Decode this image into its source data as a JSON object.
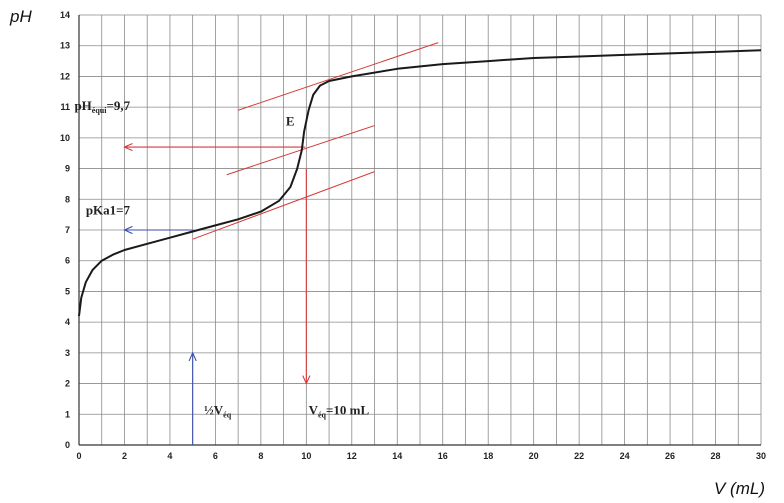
{
  "chart_data": {
    "type": "line",
    "xlabel": "V (mL)",
    "ylabel": "pH",
    "xlim": [
      0,
      30
    ],
    "ylim": [
      0,
      14
    ],
    "x_ticks": [
      0,
      2,
      4,
      6,
      8,
      10,
      12,
      14,
      16,
      18,
      20,
      22,
      24,
      26,
      28,
      30
    ],
    "y_ticks": [
      0,
      1,
      2,
      3,
      4,
      5,
      6,
      7,
      8,
      9,
      10,
      11,
      12,
      13,
      14
    ],
    "grid": true,
    "series": [
      {
        "points": [
          [
            0,
            4.2
          ],
          [
            0.1,
            4.8
          ],
          [
            0.3,
            5.3
          ],
          [
            0.6,
            5.7
          ],
          [
            1,
            6.0
          ],
          [
            1.5,
            6.2
          ],
          [
            2,
            6.35
          ],
          [
            3,
            6.55
          ],
          [
            4,
            6.75
          ],
          [
            5,
            6.95
          ],
          [
            6,
            7.15
          ],
          [
            7,
            7.35
          ],
          [
            8,
            7.6
          ],
          [
            8.8,
            7.95
          ],
          [
            9.3,
            8.4
          ],
          [
            9.6,
            9.0
          ],
          [
            9.8,
            9.6
          ],
          [
            9.9,
            10.2
          ],
          [
            10.1,
            10.9
          ],
          [
            10.3,
            11.4
          ],
          [
            10.6,
            11.7
          ],
          [
            11,
            11.85
          ],
          [
            12,
            12.0
          ],
          [
            14,
            12.25
          ],
          [
            16,
            12.4
          ],
          [
            18,
            12.5
          ],
          [
            20,
            12.6
          ],
          [
            22,
            12.65
          ],
          [
            24,
            12.7
          ],
          [
            26,
            12.75
          ],
          [
            28,
            12.8
          ],
          [
            30,
            12.85
          ]
        ],
        "color": "#1a1a1a"
      }
    ],
    "tangent_lines": [
      {
        "from": [
          5,
          6.7
        ],
        "to": [
          13,
          8.9
        ],
        "color": "#d43a3a"
      },
      {
        "from": [
          6.5,
          8.8
        ],
        "to": [
          13,
          10.4
        ],
        "color": "#d43a3a"
      },
      {
        "from": [
          7,
          10.9
        ],
        "to": [
          15.8,
          13.1
        ],
        "color": "#d43a3a"
      }
    ],
    "guide_lines": [
      {
        "from": [
          9.95,
          9.7
        ],
        "to": [
          2,
          9.7
        ],
        "color": "#d43a3a",
        "arrow": "end"
      },
      {
        "from": [
          10,
          9
        ],
        "to": [
          10,
          2
        ],
        "color": "#d43a3a",
        "arrow": "end"
      },
      {
        "from": [
          5,
          7
        ],
        "to": [
          2,
          7
        ],
        "color": "#3a4fb0",
        "arrow": "end"
      },
      {
        "from": [
          5,
          0
        ],
        "to": [
          5,
          3
        ],
        "color": "#3a4fb0",
        "arrow": "end"
      }
    ],
    "annotations": [
      {
        "id": "ph-equi",
        "main": "pH",
        "sub": "équi",
        "tail": "=9,7",
        "at": [
          -0.2,
          10.9
        ]
      },
      {
        "id": "point-e",
        "main": "E",
        "sub": "",
        "tail": "",
        "at": [
          9.1,
          10.4
        ]
      },
      {
        "id": "pka1",
        "main": "pKa1=7",
        "sub": "",
        "tail": "",
        "at": [
          0.3,
          7.5
        ]
      },
      {
        "id": "half-veq",
        "main": "½V",
        "sub": "éq",
        "tail": "",
        "at": [
          5.5,
          1.0
        ]
      },
      {
        "id": "veq",
        "main": "V",
        "sub": "éq",
        "tail": "=10 mL",
        "at": [
          10.1,
          1.0
        ]
      }
    ]
  }
}
